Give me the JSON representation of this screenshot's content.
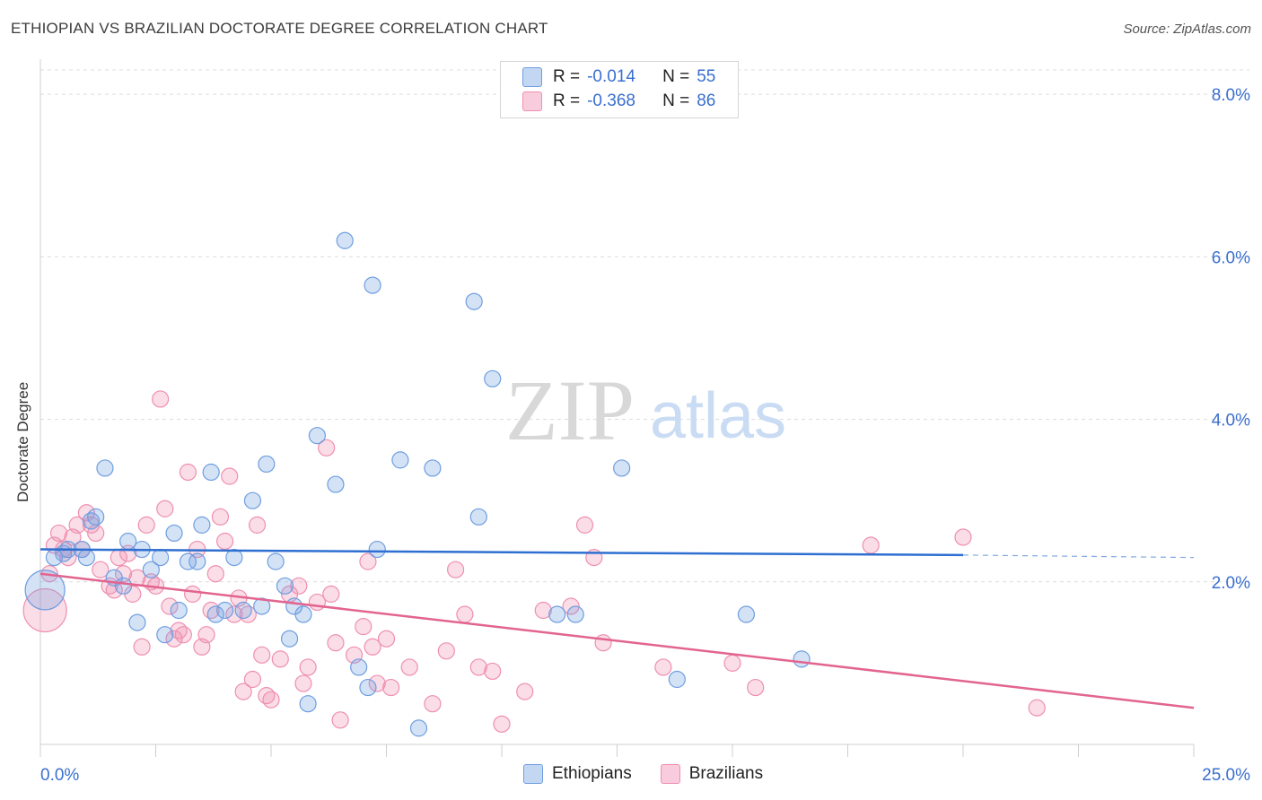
{
  "title": "ETHIOPIAN VS BRAZILIAN DOCTORATE DEGREE CORRELATION CHART",
  "source": "Source: ZipAtlas.com",
  "watermark": {
    "zip": "ZIP",
    "atlas": "atlas"
  },
  "legend": {
    "rows": [
      {
        "r_label": "R =",
        "r_value": "-0.014",
        "n_label": "N =",
        "n_value": "55"
      },
      {
        "r_label": "R =",
        "r_value": "-0.368",
        "n_label": "N =",
        "n_value": "86"
      }
    ]
  },
  "bottom_legend": {
    "ethiopians": "Ethiopians",
    "brazilians": "Brazilians"
  },
  "chart_data": {
    "type": "scatter",
    "title": "ETHIOPIAN VS BRAZILIAN DOCTORATE DEGREE CORRELATION CHART",
    "xlabel": "",
    "ylabel": "Doctorate Degree",
    "xlim": [
      0,
      25
    ],
    "ylim": [
      0,
      8.3
    ],
    "x_tick_labels": [
      "0.0%",
      "25.0%"
    ],
    "y_ticks": [
      2,
      4,
      6,
      8
    ],
    "y_tick_labels": [
      "2.0%",
      "4.0%",
      "6.0%",
      "8.0%"
    ],
    "grid": true,
    "legend_position": "top-center",
    "colors": {
      "ethiopians": "#6f9ee0",
      "brazilians": "#ef8fb0",
      "ethiopians_line": "#2e6fd1",
      "brazilians_line": "#e2648f",
      "tick_text": "#3a6fcf"
    },
    "series": [
      {
        "name": "Ethiopians",
        "trend": {
          "x": [
            0,
            20
          ],
          "y": [
            2.4,
            2.33
          ],
          "dash_to": [
            25,
            2.3
          ]
        },
        "points": [
          [
            0.1,
            1.9
          ],
          [
            0.3,
            2.3
          ],
          [
            0.5,
            2.35
          ],
          [
            0.6,
            2.4
          ],
          [
            0.9,
            2.4
          ],
          [
            1.0,
            2.3
          ],
          [
            1.1,
            2.75
          ],
          [
            1.2,
            2.8
          ],
          [
            1.4,
            3.4
          ],
          [
            1.6,
            2.05
          ],
          [
            1.8,
            1.95
          ],
          [
            1.9,
            2.5
          ],
          [
            2.1,
            1.5
          ],
          [
            2.2,
            2.4
          ],
          [
            2.4,
            2.15
          ],
          [
            2.6,
            2.3
          ],
          [
            2.7,
            1.35
          ],
          [
            2.9,
            2.6
          ],
          [
            3.0,
            1.65
          ],
          [
            3.2,
            2.25
          ],
          [
            3.4,
            2.25
          ],
          [
            3.5,
            2.7
          ],
          [
            3.7,
            3.35
          ],
          [
            3.8,
            1.6
          ],
          [
            4.0,
            1.65
          ],
          [
            4.2,
            2.3
          ],
          [
            4.4,
            1.65
          ],
          [
            4.6,
            3.0
          ],
          [
            4.8,
            1.7
          ],
          [
            4.9,
            3.45
          ],
          [
            5.1,
            2.25
          ],
          [
            5.3,
            1.95
          ],
          [
            5.4,
            1.3
          ],
          [
            5.5,
            1.7
          ],
          [
            5.7,
            1.6
          ],
          [
            5.8,
            0.5
          ],
          [
            6.0,
            3.8
          ],
          [
            6.4,
            3.2
          ],
          [
            6.6,
            6.2
          ],
          [
            6.9,
            0.95
          ],
          [
            7.1,
            0.7
          ],
          [
            7.2,
            5.65
          ],
          [
            7.3,
            2.4
          ],
          [
            7.8,
            3.5
          ],
          [
            8.2,
            0.2
          ],
          [
            8.5,
            3.4
          ],
          [
            9.4,
            5.45
          ],
          [
            9.5,
            2.8
          ],
          [
            9.8,
            4.5
          ],
          [
            11.2,
            1.6
          ],
          [
            11.6,
            1.6
          ],
          [
            12.6,
            3.4
          ],
          [
            13.8,
            0.8
          ],
          [
            15.3,
            1.6
          ],
          [
            16.5,
            1.05
          ]
        ]
      },
      {
        "name": "Brazilians",
        "trend": {
          "x": [
            0,
            25
          ],
          "y": [
            2.1,
            0.45
          ]
        },
        "points": [
          [
            0.1,
            1.65
          ],
          [
            0.2,
            2.1
          ],
          [
            0.3,
            2.45
          ],
          [
            0.4,
            2.6
          ],
          [
            0.5,
            2.4
          ],
          [
            0.6,
            2.3
          ],
          [
            0.7,
            2.55
          ],
          [
            0.8,
            2.7
          ],
          [
            0.9,
            2.4
          ],
          [
            1.0,
            2.85
          ],
          [
            1.1,
            2.7
          ],
          [
            1.2,
            2.6
          ],
          [
            1.3,
            2.15
          ],
          [
            1.5,
            1.95
          ],
          [
            1.6,
            1.9
          ],
          [
            1.7,
            2.3
          ],
          [
            1.8,
            2.1
          ],
          [
            1.9,
            2.35
          ],
          [
            2.0,
            1.85
          ],
          [
            2.1,
            2.05
          ],
          [
            2.2,
            1.2
          ],
          [
            2.3,
            2.7
          ],
          [
            2.4,
            2.0
          ],
          [
            2.5,
            1.95
          ],
          [
            2.6,
            4.25
          ],
          [
            2.7,
            2.9
          ],
          [
            2.8,
            1.7
          ],
          [
            2.9,
            1.3
          ],
          [
            3.0,
            1.4
          ],
          [
            3.1,
            1.35
          ],
          [
            3.2,
            3.35
          ],
          [
            3.3,
            1.85
          ],
          [
            3.4,
            2.4
          ],
          [
            3.5,
            1.2
          ],
          [
            3.6,
            1.35
          ],
          [
            3.7,
            1.65
          ],
          [
            3.8,
            2.1
          ],
          [
            3.9,
            2.8
          ],
          [
            4.0,
            2.5
          ],
          [
            4.1,
            3.3
          ],
          [
            4.2,
            1.6
          ],
          [
            4.3,
            1.8
          ],
          [
            4.4,
            0.65
          ],
          [
            4.5,
            1.6
          ],
          [
            4.6,
            0.8
          ],
          [
            4.7,
            2.7
          ],
          [
            4.8,
            1.1
          ],
          [
            4.9,
            0.6
          ],
          [
            5.0,
            0.55
          ],
          [
            5.2,
            1.05
          ],
          [
            5.4,
            1.85
          ],
          [
            5.6,
            1.95
          ],
          [
            5.7,
            0.75
          ],
          [
            5.8,
            0.95
          ],
          [
            6.0,
            1.75
          ],
          [
            6.2,
            3.65
          ],
          [
            6.3,
            1.85
          ],
          [
            6.4,
            1.25
          ],
          [
            6.5,
            0.3
          ],
          [
            6.8,
            1.1
          ],
          [
            7.0,
            1.45
          ],
          [
            7.1,
            2.25
          ],
          [
            7.2,
            1.2
          ],
          [
            7.3,
            0.75
          ],
          [
            7.5,
            1.3
          ],
          [
            7.6,
            0.7
          ],
          [
            8.0,
            0.95
          ],
          [
            8.5,
            0.5
          ],
          [
            8.8,
            1.15
          ],
          [
            9.0,
            2.15
          ],
          [
            9.2,
            1.6
          ],
          [
            9.5,
            0.95
          ],
          [
            9.8,
            0.9
          ],
          [
            10.0,
            0.25
          ],
          [
            10.5,
            0.65
          ],
          [
            10.9,
            1.65
          ],
          [
            11.5,
            1.7
          ],
          [
            11.8,
            2.7
          ],
          [
            12.0,
            2.3
          ],
          [
            12.2,
            1.25
          ],
          [
            13.5,
            0.95
          ],
          [
            15.0,
            1.0
          ],
          [
            15.5,
            0.7
          ],
          [
            18.0,
            2.45
          ],
          [
            20.0,
            2.55
          ],
          [
            21.6,
            0.45
          ]
        ]
      }
    ]
  }
}
